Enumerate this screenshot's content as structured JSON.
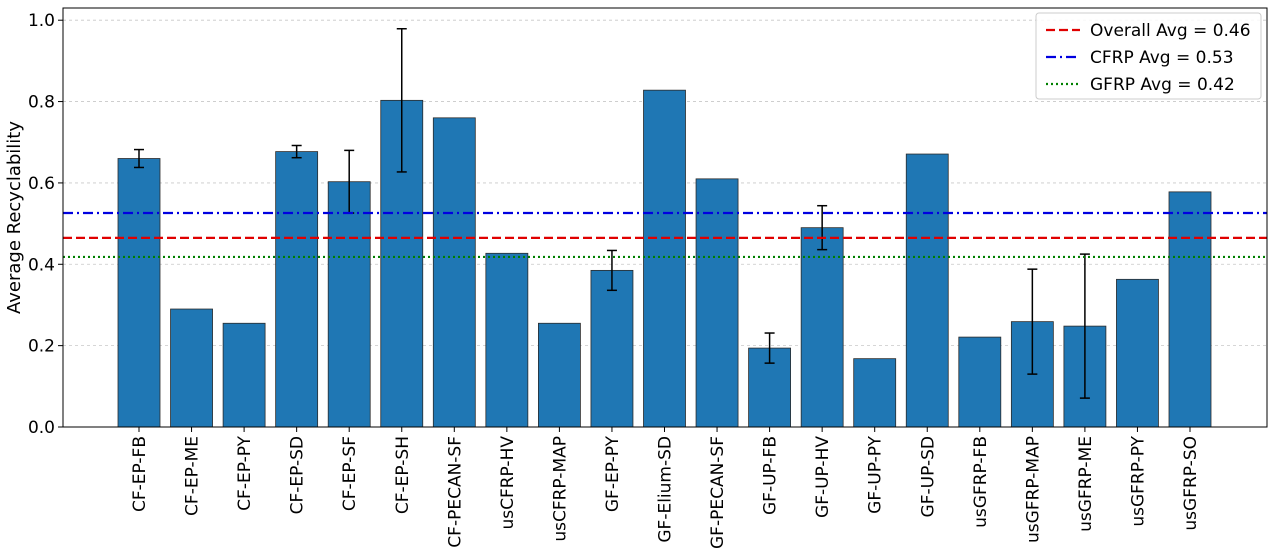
{
  "chart_data": {
    "type": "bar",
    "title": "",
    "xlabel": "",
    "ylabel": "Average Recyclability",
    "ylim": [
      0,
      1.03
    ],
    "yticks": [
      0.0,
      0.2,
      0.4,
      0.6,
      0.8,
      1.0
    ],
    "ytick_labels": [
      "0.0",
      "0.2",
      "0.4",
      "0.6",
      "0.8",
      "1.0"
    ],
    "grid": "horizontal-dashed",
    "bar_color": "#1f77b4",
    "categories": [
      "CF-EP-FB",
      "CF-EP-ME",
      "CF-EP-PY",
      "CF-EP-SD",
      "CF-EP-SF",
      "CF-EP-SH",
      "CF-PECAN-SF",
      "usCFRP-HV",
      "usCFRP-MAP",
      "GF-EP-PY",
      "GF-Elium-SD",
      "GF-PECAN-SF",
      "GF-UP-FB",
      "GF-UP-HV",
      "GF-UP-PY",
      "GF-UP-SD",
      "usGFRP-FB",
      "usGFRP-MAP",
      "usGFRP-ME",
      "usGFRP-PY",
      "usGFRP-SO"
    ],
    "values": [
      0.66,
      0.29,
      0.255,
      0.677,
      0.603,
      0.803,
      0.76,
      0.427,
      0.255,
      0.385,
      0.828,
      0.61,
      0.194,
      0.49,
      0.168,
      0.671,
      0.221,
      0.259,
      0.248,
      0.363,
      0.578
    ],
    "errors": [
      0.022,
      null,
      null,
      0.015,
      0.077,
      0.176,
      null,
      null,
      null,
      0.049,
      null,
      null,
      0.037,
      0.054,
      null,
      null,
      null,
      0.129,
      0.177,
      null,
      null
    ],
    "reference_lines": [
      {
        "label": "Overall Avg = 0.46",
        "value": 0.465,
        "color": "#e00000",
        "style": "dashed"
      },
      {
        "label": "CFRP Avg = 0.53",
        "value": 0.526,
        "color": "#0000e0",
        "style": "dashdot"
      },
      {
        "label": "GFRP Avg = 0.42",
        "value": 0.418,
        "color": "#008000",
        "style": "dotted"
      }
    ],
    "legend_position": "top-right"
  }
}
